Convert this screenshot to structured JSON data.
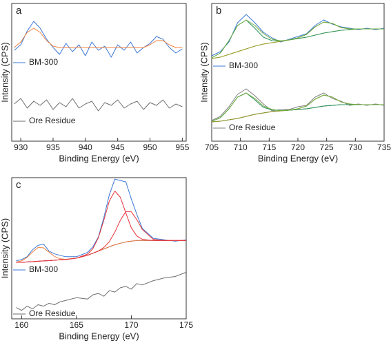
{
  "chart_data": [
    {
      "type": "line",
      "label": "a",
      "xlabel": "Binding Energy (eV)",
      "ylabel": "Intensity (CPS)",
      "x": [
        929,
        930,
        931,
        932,
        933,
        934,
        935,
        936,
        937,
        938,
        939,
        940,
        941,
        942,
        943,
        944,
        945,
        946,
        947,
        948,
        949,
        950,
        951,
        952,
        953,
        954,
        955
      ],
      "xlim": [
        928.6,
        955.6
      ],
      "xticks": [
        930,
        935,
        940,
        945,
        950,
        955
      ],
      "ylim": [
        0,
        100
      ],
      "series": [
        {
          "name": "BM-300",
          "color": "#3a78d6",
          "values": [
            66,
            70,
            80,
            87,
            82,
            74,
            68,
            63,
            71,
            65,
            70,
            62,
            72,
            66,
            69,
            61,
            70,
            66,
            72,
            64,
            68,
            71,
            76,
            74,
            68,
            64,
            67
          ]
        },
        {
          "color": "#f07f3c",
          "values": [
            68,
            72,
            79,
            82,
            79,
            73,
            69,
            68,
            68,
            68,
            68,
            68,
            68,
            68,
            68,
            68,
            68,
            68,
            68,
            68,
            68,
            70,
            73,
            73,
            70,
            68,
            68
          ]
        },
        {
          "name": "Ore Residue",
          "color": "#6d6d6d",
          "values": [
            27,
            31,
            24,
            29,
            26,
            30,
            23,
            28,
            25,
            31,
            24,
            27,
            29,
            22,
            28,
            26,
            30,
            24,
            27,
            29,
            23,
            28,
            26,
            30,
            24,
            27,
            25
          ]
        }
      ]
    },
    {
      "type": "line",
      "label": "b",
      "xlabel": "Binding Energy (eV)",
      "ylabel": "Intensity (CPS)",
      "x": [
        705,
        706.5,
        708,
        709.5,
        711,
        712.5,
        714,
        715.5,
        717,
        718.5,
        720,
        721.5,
        723,
        724.5,
        726,
        727.5,
        729,
        730.5,
        732,
        733.5,
        735
      ],
      "xlim": [
        705,
        735
      ],
      "xticks": [
        705,
        710,
        715,
        720,
        725,
        730,
        735
      ],
      "ylim": [
        0,
        100
      ],
      "series": [
        {
          "name": "BM-300",
          "color": "#3a78d6",
          "values": [
            62,
            65,
            72,
            86,
            92,
            86,
            79,
            75,
            72,
            74,
            76,
            78,
            84,
            88,
            85,
            83,
            82,
            81,
            82,
            81,
            82
          ]
        },
        {
          "color": "#a8c94a",
          "values": [
            60,
            61,
            63,
            65,
            67,
            69,
            70.5,
            71.5,
            72.5,
            73.5,
            74.5,
            75.5,
            77,
            78.5,
            79.5,
            80.5,
            81,
            81.5,
            81.5,
            81.5,
            81.5
          ]
        },
        {
          "color": "#2f9460",
          "values": [
            60.5,
            64,
            73,
            84,
            88,
            82,
            75.5,
            73,
            72.8,
            73.5,
            74.5,
            75.5,
            77,
            78.5,
            79.5,
            80.5,
            81,
            81.5,
            81.5,
            81.5,
            81.5
          ]
        },
        {
          "color": "#9a9a2a",
          "values": [
            60,
            61,
            63,
            65,
            67,
            69,
            70.5,
            71.5,
            72.5,
            73.5,
            75,
            77.5,
            83,
            86.5,
            85.5,
            82.5,
            81.5,
            81.5,
            81.5,
            81.5,
            81.5
          ]
        },
        {
          "color": "#6aab3a",
          "values": [
            60.5,
            64,
            73,
            84,
            88,
            84,
            78,
            74,
            72.8,
            73.5,
            75,
            77.5,
            83,
            86.5,
            85.5,
            82.5,
            81.5,
            81.5,
            81.5,
            81.5,
            81.5
          ]
        },
        {
          "name": "Ore Residue",
          "color": "#808080",
          "values": [
            15,
            18,
            25,
            34,
            38,
            33,
            27,
            22,
            23,
            23,
            25,
            26,
            32,
            35,
            31,
            29,
            26,
            27,
            26,
            27,
            26
          ]
        },
        {
          "color": "#2d5f2d",
          "values": [
            14,
            14.5,
            15.5,
            16.5,
            18,
            19.5,
            20.5,
            21.5,
            22,
            22.5,
            23,
            23.5,
            24.5,
            25.5,
            26,
            26.5,
            26.5,
            26.5,
            26.5,
            26.5,
            26.5
          ]
        },
        {
          "color": "#2f9460",
          "values": [
            14.4,
            17,
            23.5,
            32,
            35,
            30,
            24.5,
            22.7,
            22.2,
            22.5,
            23,
            23.5,
            24.5,
            25.5,
            26,
            26.5,
            26.5,
            26.5,
            26.5,
            26.5,
            26.5
          ]
        },
        {
          "color": "#9a9a2a",
          "values": [
            14,
            14.5,
            15.5,
            16.5,
            18,
            19.5,
            20.5,
            21.5,
            22,
            22.5,
            23.5,
            25.5,
            30.5,
            33.5,
            32,
            28.5,
            27,
            26.5,
            26.5,
            26.5,
            26.5
          ]
        },
        {
          "color": "#6aab3a",
          "values": [
            14.4,
            17,
            23.5,
            32,
            35,
            31,
            25.5,
            23,
            22.2,
            22.5,
            23.5,
            25.5,
            30.5,
            33.5,
            32,
            28.5,
            27,
            26.5,
            26.5,
            26.5,
            26.5
          ]
        }
      ]
    },
    {
      "type": "line",
      "label": "c",
      "xlabel": "Binding Energy (eV)",
      "ylabel": "Intensity (CPS)",
      "x": [
        159.5,
        160,
        160.5,
        161,
        161.5,
        162,
        162.5,
        163,
        163.5,
        164,
        165,
        166,
        166.5,
        167,
        167.5,
        168,
        168.5,
        169,
        169.5,
        170,
        170.5,
        171,
        172,
        173,
        174,
        175
      ],
      "xlim": [
        159.1,
        175
      ],
      "xticks": [
        160,
        165,
        170,
        175
      ],
      "ylim": [
        0,
        100
      ],
      "series": [
        {
          "name": "BM-300",
          "color": "#3a78d6",
          "values": [
            41,
            42,
            44,
            49,
            52,
            53,
            48,
            46,
            45,
            44,
            44,
            47,
            51,
            58,
            72,
            88,
            99,
            98,
            97,
            85,
            74,
            64,
            57,
            56,
            55,
            56
          ]
        },
        {
          "color": "#3a3f8f",
          "values": [
            40,
            40,
            40.3,
            40.5,
            40.8,
            41,
            41.2,
            41.5,
            41.8,
            42,
            43,
            45,
            46.5,
            48,
            49.5,
            51,
            52.5,
            53.5,
            54.5,
            55,
            55.5,
            55.5,
            55.5,
            55.5,
            55.5,
            55.5
          ]
        },
        {
          "color": "#f07f3c",
          "values": [
            40.2,
            41,
            43.5,
            47.3,
            50.5,
            50.3,
            47.2,
            44.2,
            42.6,
            42.2,
            43,
            45,
            46.5,
            48,
            49.5,
            51,
            52.5,
            53.5,
            54.5,
            55,
            55.5,
            55.5,
            55.5,
            55.5,
            55.5,
            55.5
          ]
        },
        {
          "color": "#e8333a",
          "values": [
            40,
            40,
            40.3,
            40.5,
            40.8,
            41,
            41.2,
            41.5,
            41.8,
            42,
            43,
            45.8,
            49.7,
            57.5,
            70,
            83.6,
            90.5,
            86.1,
            75,
            64.5,
            58.7,
            56.3,
            55.5,
            55.5,
            55.5,
            55.5
          ]
        },
        {
          "color": "#e8333a",
          "values": [
            40,
            40,
            40.3,
            40.5,
            40.8,
            41,
            41.2,
            41.5,
            41.8,
            42,
            43,
            45,
            46.5,
            48,
            50.6,
            54.7,
            61.5,
            69.8,
            76,
            75.8,
            70.3,
            63.3,
            56.3,
            55.5,
            55.5,
            55.5
          ]
        },
        {
          "name": "Ore Residue",
          "color": "#6d6d6d",
          "values": [
            8,
            6,
            9,
            7,
            10,
            9,
            11,
            10,
            12,
            13,
            15,
            14,
            17,
            18,
            16,
            20,
            19,
            22,
            23,
            21,
            25,
            24,
            27,
            29,
            30,
            33
          ]
        }
      ]
    }
  ]
}
